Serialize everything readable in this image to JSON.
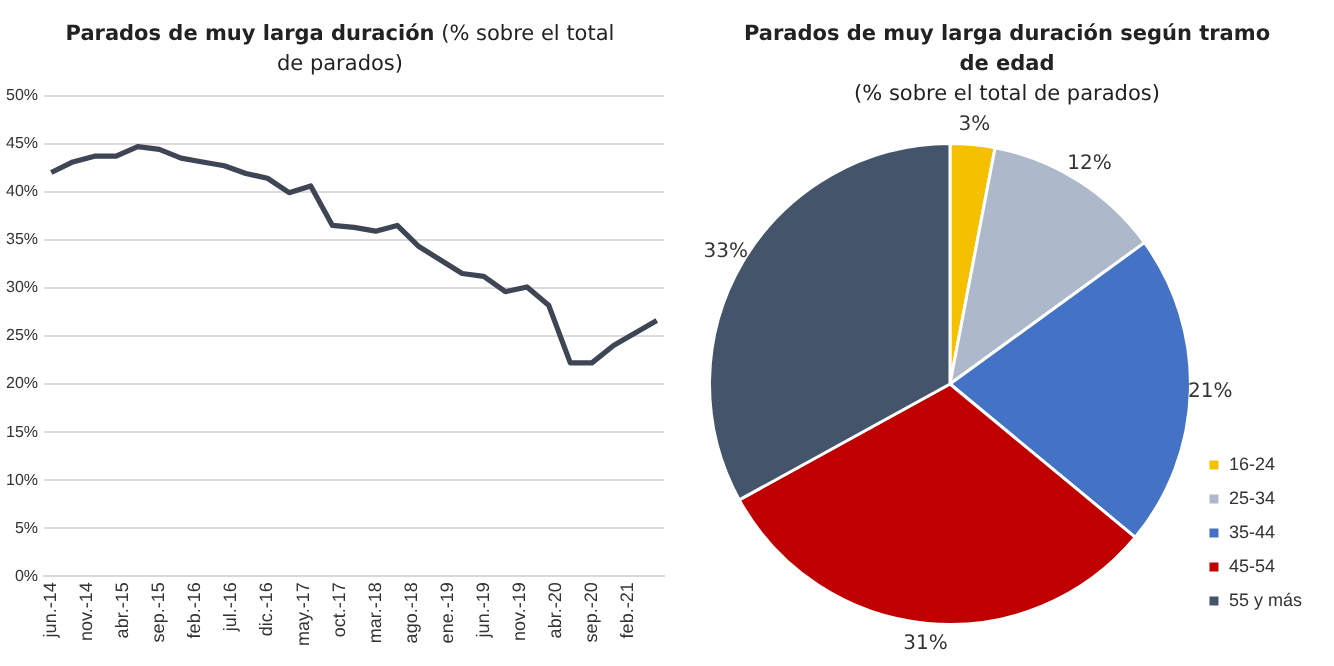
{
  "chart_data": [
    {
      "type": "line",
      "title": "Parados de muy larga duración",
      "subtitle": "(% sobre el total de parados)",
      "x": [
        "2014-06",
        "2014-09",
        "2014-12",
        "2015-03",
        "2015-06",
        "2015-09",
        "2015-12",
        "2016-03",
        "2016-06",
        "2016-09",
        "2016-12",
        "2017-03",
        "2017-06",
        "2017-09",
        "2017-12",
        "2018-03",
        "2018-06",
        "2018-09",
        "2018-12",
        "2019-03",
        "2019-06",
        "2019-09",
        "2019-12",
        "2020-03",
        "2020-06",
        "2020-09",
        "2020-12",
        "2021-03",
        "2021-06"
      ],
      "series": [
        {
          "color": "#3e4554",
          "values": [
            42.0,
            43.1,
            43.7,
            43.7,
            44.7,
            44.4,
            43.5,
            43.1,
            42.7,
            41.9,
            41.4,
            39.9,
            40.6,
            36.5,
            36.3,
            35.9,
            36.5,
            34.3,
            32.9,
            31.5,
            31.2,
            29.6,
            30.1,
            28.2,
            22.2,
            22.2,
            24.0,
            25.3,
            26.6
          ]
        }
      ],
      "xlim": [
        "2014-05",
        "2021-07"
      ],
      "xticks": [
        {
          "value": "2014-06",
          "label": "jun.-14"
        },
        {
          "value": "2014-11",
          "label": "nov.-14"
        },
        {
          "value": "2015-04",
          "label": "abr.-15"
        },
        {
          "value": "2015-09",
          "label": "sep.-15"
        },
        {
          "value": "2016-02",
          "label": "feb.-16"
        },
        {
          "value": "2016-07",
          "label": "jul.-16"
        },
        {
          "value": "2016-12",
          "label": "dic.-16"
        },
        {
          "value": "2017-05",
          "label": "may.-17"
        },
        {
          "value": "2017-10",
          "label": "oct.-17"
        },
        {
          "value": "2018-03",
          "label": "mar.-18"
        },
        {
          "value": "2018-08",
          "label": "ago.-18"
        },
        {
          "value": "2019-01",
          "label": "ene.-19"
        },
        {
          "value": "2019-06",
          "label": "jun.-19"
        },
        {
          "value": "2019-11",
          "label": "nov.-19"
        },
        {
          "value": "2020-04",
          "label": "abr.-20"
        },
        {
          "value": "2020-09",
          "label": "sep.-20"
        },
        {
          "value": "2021-02",
          "label": "feb.-21"
        }
      ],
      "ylim": [
        0,
        50
      ],
      "yticks": [
        {
          "value": 0,
          "label": "0%"
        },
        {
          "value": 5,
          "label": "5%"
        },
        {
          "value": 10,
          "label": "10%"
        },
        {
          "value": 15,
          "label": "15%"
        },
        {
          "value": 20,
          "label": "20%"
        },
        {
          "value": 25,
          "label": "25%"
        },
        {
          "value": 30,
          "label": "30%"
        },
        {
          "value": 35,
          "label": "35%"
        },
        {
          "value": 40,
          "label": "40%"
        },
        {
          "value": 45,
          "label": "45%"
        },
        {
          "value": 50,
          "label": "50%"
        }
      ],
      "grid": "y",
      "legend": false,
      "marker": "none"
    },
    {
      "type": "pie",
      "title": "Parados de muy larga duración según tramo de edad",
      "subtitle": "(% sobre el total de parados)",
      "categories": [
        "16-24",
        "25-34",
        "35-44",
        "45-54",
        "55 y más"
      ],
      "values": [
        3,
        12,
        21,
        31,
        33
      ],
      "colors": [
        "#f5c000",
        "#adb9ca",
        "#4472c4",
        "#c00000",
        "#44546a"
      ],
      "value_labels": [
        "3%",
        "12%",
        "21%",
        "31%",
        "33%"
      ],
      "legend": "right"
    }
  ]
}
